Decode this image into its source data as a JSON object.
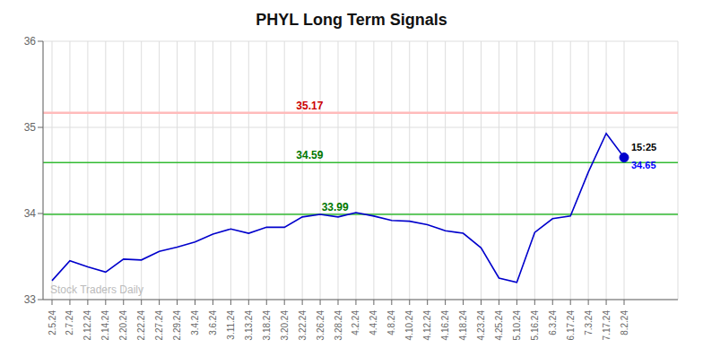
{
  "chart_data": {
    "type": "line",
    "title": "PHYL Long Term Signals",
    "categories": [
      "2.5.24",
      "2.7.24",
      "2.12.24",
      "2.14.24",
      "2.20.24",
      "2.22.24",
      "2.27.24",
      "2.29.24",
      "3.4.24",
      "3.6.24",
      "3.11.24",
      "3.13.24",
      "3.18.24",
      "3.20.24",
      "3.22.24",
      "3.26.24",
      "3.28.24",
      "4.2.24",
      "4.4.24",
      "4.8.24",
      "4.10.24",
      "4.12.24",
      "4.16.24",
      "4.18.24",
      "4.23.24",
      "4.25.24",
      "5.10.24",
      "5.16.24",
      "6.3.24",
      "6.17.24",
      "7.3.24",
      "7.17.24",
      "8.2.24"
    ],
    "values": [
      33.22,
      33.45,
      33.38,
      33.32,
      33.47,
      33.46,
      33.56,
      33.61,
      33.67,
      33.76,
      33.82,
      33.77,
      33.84,
      33.84,
      33.96,
      33.99,
      33.96,
      34.01,
      33.97,
      33.92,
      33.91,
      33.87,
      33.8,
      33.77,
      33.6,
      33.25,
      33.2,
      33.78,
      33.94,
      33.97,
      34.48,
      34.93,
      34.65
    ],
    "color": "#0000cc",
    "marker": "last",
    "ylim": [
      33.0,
      36.0
    ],
    "yticks": [
      33,
      34,
      35,
      36
    ],
    "grid": true,
    "hlines": [
      {
        "value": 35.17,
        "label": "35.17",
        "color": "#ffbbbb",
        "label_color": "#cc0000"
      },
      {
        "value": 34.59,
        "label": "34.59",
        "color": "#33bb33",
        "label_color": "#007700"
      },
      {
        "value": 33.99,
        "label": "33.99",
        "color": "#33bb33",
        "label_color": "#007700"
      }
    ],
    "annotations": [
      {
        "text": "15:25",
        "color": "#000000"
      },
      {
        "text": "34.65",
        "color": "#0000ff"
      }
    ],
    "watermark": "Stock Traders Daily"
  }
}
